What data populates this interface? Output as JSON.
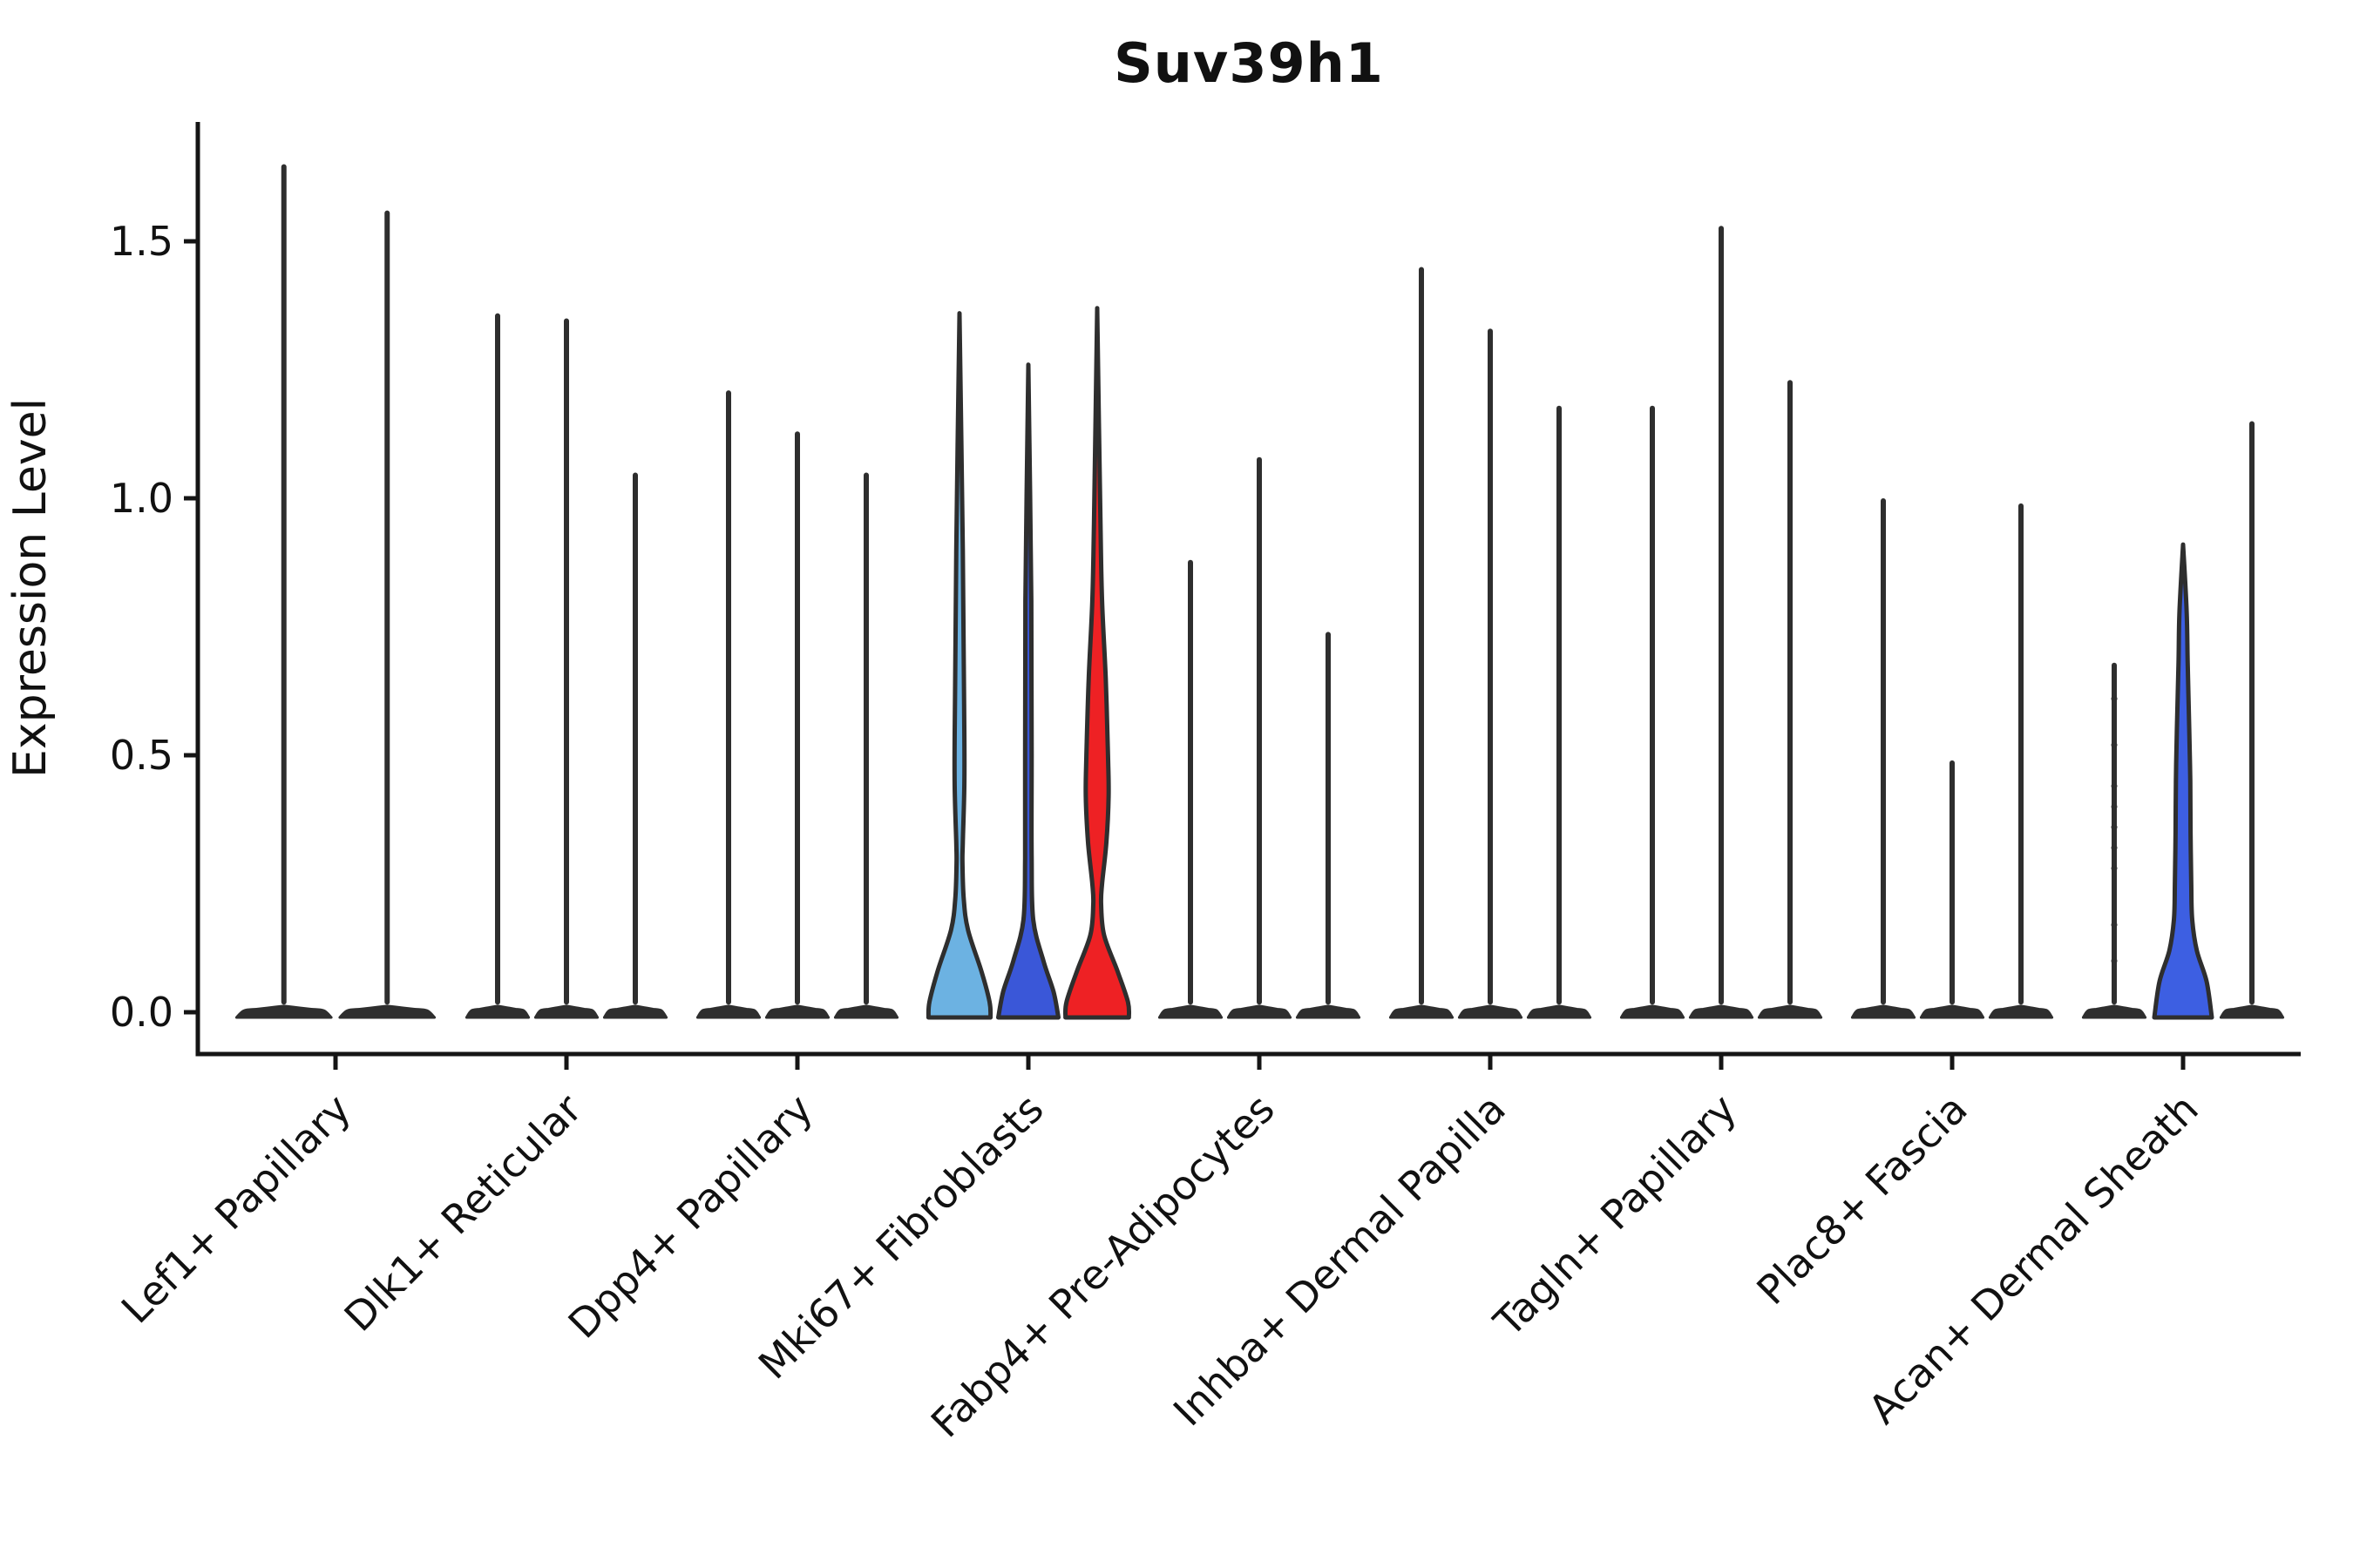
{
  "figure": {
    "title": "Suv39h1"
  },
  "chart_data": {
    "type": "violin",
    "title": "Suv39h1",
    "xlabel": "",
    "ylabel": "Expression Level",
    "ylim": [
      -0.08,
      1.73
    ],
    "yticks": [
      0.0,
      0.5,
      1.0,
      1.5
    ],
    "ytick_labels": [
      "0.0",
      "0.5",
      "1.0",
      "1.5"
    ],
    "grid": false,
    "legend": "none",
    "spine_color": "#151515",
    "outline_color": "#2e2e2e",
    "categories": [
      "Lef1+ Papillary",
      "Dlk1+ Reticular",
      "Dpp4+ Papillary",
      "Mki67+ Fibroblasts",
      "Fabp4+ Pre-Adipocytes",
      "Inhba+ Dermal Papilla",
      "Tagln+ Papillary",
      "Plac8+ Fascia",
      "Acan+ Dermal Sheath"
    ],
    "groups": [
      {
        "label": "Lef1+ Papillary",
        "violins": [
          {
            "kind": "spike",
            "max": 1.65,
            "fill": "#ffffff"
          },
          {
            "kind": "spike",
            "max": 1.56,
            "fill": "#ffffff"
          }
        ]
      },
      {
        "label": "Dlk1+ Reticular",
        "violins": [
          {
            "kind": "spike",
            "max": 1.36,
            "fill": "#ffffff"
          },
          {
            "kind": "spike",
            "max": 1.35,
            "fill": "#ffffff"
          },
          {
            "kind": "spike",
            "max": 1.05,
            "fill": "#ffffff"
          }
        ]
      },
      {
        "label": "Dpp4+ Papillary",
        "violins": [
          {
            "kind": "spike",
            "max": 1.21,
            "fill": "#ffffff"
          },
          {
            "kind": "spike",
            "max": 1.13,
            "fill": "#ffffff"
          },
          {
            "kind": "spike",
            "max": 1.05,
            "fill": "#ffffff"
          }
        ]
      },
      {
        "label": "Mki67+ Fibroblasts",
        "violins": [
          {
            "kind": "density",
            "max": 1.36,
            "fill": "#6CB2E2",
            "profile": [
              [
                0.9,
                0.1
              ],
              [
                0.6,
                0.14
              ],
              [
                0.45,
                0.15
              ],
              [
                0.33,
                0.1
              ],
              [
                0.29,
                0.09
              ],
              [
                0.22,
                0.13
              ],
              [
                0.16,
                0.26
              ],
              [
                0.08,
                0.67
              ],
              [
                0.02,
                0.92
              ],
              [
                0,
                0.95
              ]
            ]
          },
          {
            "kind": "density",
            "max": 1.26,
            "fill": "#3A57D8",
            "profile": [
              [
                0.8,
                0.09
              ],
              [
                0.5,
                0.1
              ],
              [
                0.3,
                0.1
              ],
              [
                0.18,
                0.15
              ],
              [
                0.1,
                0.46
              ],
              [
                0.04,
                0.77
              ],
              [
                0,
                0.92
              ]
            ]
          },
          {
            "kind": "density",
            "max": 1.37,
            "fill": "#EE2124",
            "profile": [
              [
                0.95,
                0.1
              ],
              [
                0.8,
                0.15
              ],
              [
                0.65,
                0.26
              ],
              [
                0.5,
                0.33
              ],
              [
                0.42,
                0.35
              ],
              [
                0.33,
                0.28
              ],
              [
                0.25,
                0.15
              ],
              [
                0.21,
                0.12
              ],
              [
                0.15,
                0.21
              ],
              [
                0.08,
                0.62
              ],
              [
                0.02,
                0.94
              ],
              [
                0,
                0.97
              ]
            ]
          }
        ]
      },
      {
        "label": "Fabp4+ Pre-Adipocytes",
        "violins": [
          {
            "kind": "spike",
            "max": 0.88,
            "fill": "#ffffff"
          },
          {
            "kind": "spike",
            "max": 1.08,
            "fill": "#ffffff"
          },
          {
            "kind": "spike",
            "max": 0.74,
            "fill": "#ffffff"
          }
        ]
      },
      {
        "label": "Inhba+ Dermal Papilla",
        "violins": [
          {
            "kind": "spike",
            "max": 1.45,
            "fill": "#ffffff"
          },
          {
            "kind": "spike",
            "max": 1.33,
            "fill": "#ffffff"
          },
          {
            "kind": "spike",
            "max": 1.18,
            "fill": "#ffffff"
          }
        ]
      },
      {
        "label": "Tagln+ Papillary",
        "violins": [
          {
            "kind": "spike",
            "max": 1.18,
            "fill": "#ffffff"
          },
          {
            "kind": "spike",
            "max": 1.53,
            "fill": "#ffffff"
          },
          {
            "kind": "spike",
            "max": 1.23,
            "fill": "#ffffff"
          }
        ]
      },
      {
        "label": "Plac8+ Fascia",
        "violins": [
          {
            "kind": "spike",
            "max": 1.0,
            "fill": "#ffffff"
          },
          {
            "kind": "spike",
            "max": 0.49,
            "fill": "#ffffff"
          },
          {
            "kind": "spike",
            "max": 0.99,
            "fill": "#ffffff"
          }
        ]
      },
      {
        "label": "Acan+ Dermal Sheath",
        "violins": [
          {
            "kind": "spike",
            "max": 0.68,
            "fill": "#ffffff",
            "dots": [
              0.61,
              0.52,
              0.44,
              0.4,
              0.36,
              0.32,
              0.28,
              0.17,
              0.1
            ]
          },
          {
            "kind": "density",
            "max": 0.91,
            "fill": "#3D5FE2",
            "profile": [
              [
                0.78,
                0.11
              ],
              [
                0.68,
                0.14
              ],
              [
                0.55,
                0.19
              ],
              [
                0.45,
                0.22
              ],
              [
                0.35,
                0.23
              ],
              [
                0.25,
                0.25
              ],
              [
                0.18,
                0.28
              ],
              [
                0.12,
                0.42
              ],
              [
                0.06,
                0.72
              ],
              [
                0,
                0.88
              ]
            ]
          },
          {
            "kind": "spike",
            "max": 1.15,
            "fill": "#ffffff"
          }
        ]
      }
    ]
  }
}
